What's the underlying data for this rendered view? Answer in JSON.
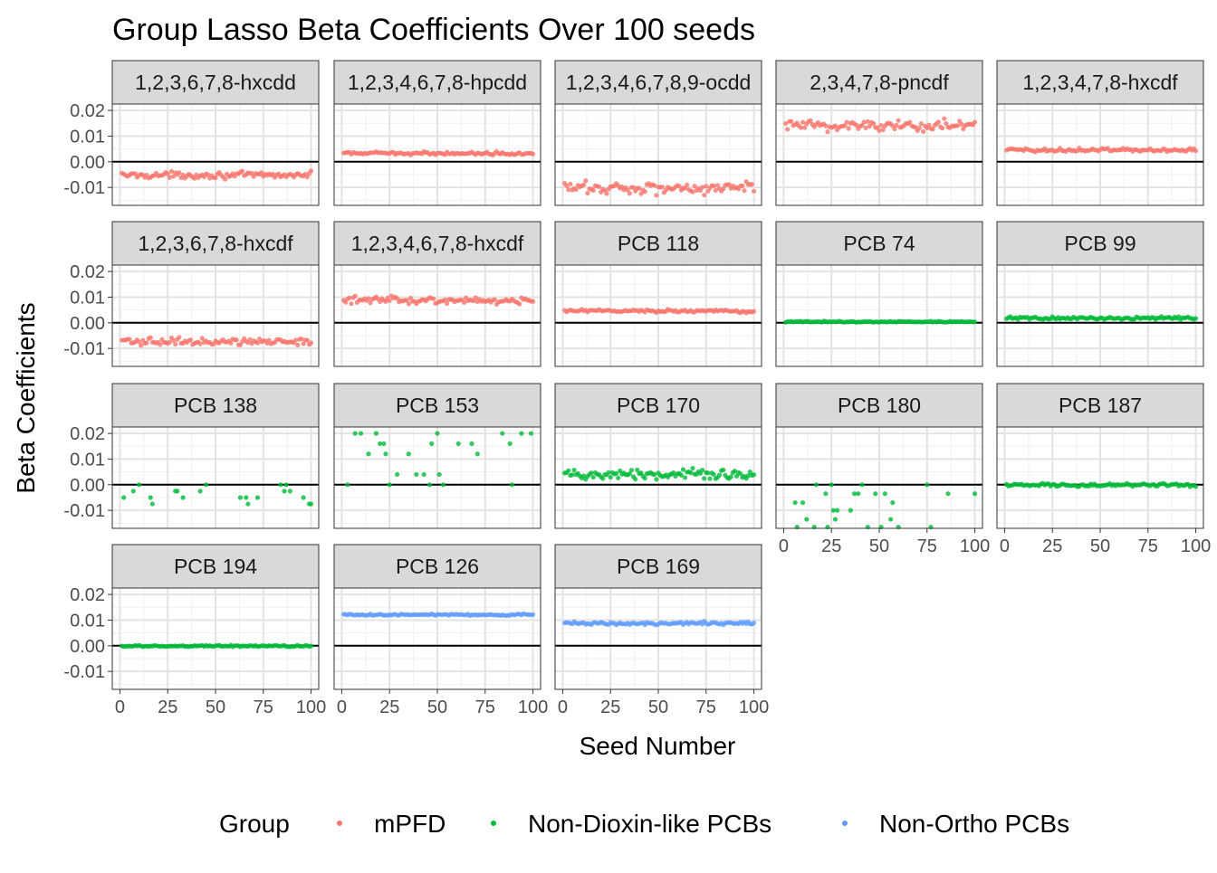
{
  "chart_data": {
    "type": "scatter",
    "title": "Group Lasso Beta Coefficients Over 100 seeds",
    "xlabel": "Seed Number",
    "ylabel": "Beta Coefficients",
    "xlim": [
      -4,
      104
    ],
    "ylim": [
      -0.017,
      0.0225
    ],
    "x_ticks": [
      0,
      25,
      50,
      75,
      100
    ],
    "y_ticks": [
      0.02,
      0.01,
      0.0,
      -0.01
    ],
    "y_tick_labels": [
      "0.02",
      "0.01",
      "0.00",
      "-0.01"
    ],
    "hline_y": 0,
    "grid": true,
    "legend": {
      "title": "Group",
      "position": "bottom",
      "entries": [
        {
          "name": "mPFD",
          "color": "#F8766D"
        },
        {
          "name": "Non-Dioxin-like PCBs",
          "color": "#00BA38"
        },
        {
          "name": "Non-Ortho PCBs",
          "color": "#619CFF"
        }
      ]
    },
    "panels": [
      {
        "label": "1,2,3,6,7,8-hxcdd",
        "group": "mPFD",
        "mean": -0.0052,
        "spread": 0.0011,
        "pattern": "noise"
      },
      {
        "label": "1,2,3,4,6,7,8-hpcdd",
        "group": "mPFD",
        "mean": 0.0033,
        "spread": 0.0005,
        "pattern": "noise"
      },
      {
        "label": "1,2,3,4,6,7,8,9-ocdd",
        "group": "mPFD",
        "mean": -0.0102,
        "spread": 0.0022,
        "pattern": "noise"
      },
      {
        "label": "2,3,4,7,8-pncdf",
        "group": "mPFD",
        "mean": 0.0142,
        "spread": 0.0022,
        "pattern": "noise"
      },
      {
        "label": "1,2,3,4,7,8-hxcdf",
        "group": "mPFD",
        "mean": 0.0046,
        "spread": 0.0007,
        "pattern": "noise"
      },
      {
        "label": "1,2,3,6,7,8-hxcdf",
        "group": "mPFD",
        "mean": -0.0073,
        "spread": 0.0012,
        "pattern": "noise"
      },
      {
        "label": "1,2,3,4,6,7,8-hxcdf",
        "group": "mPFD",
        "mean": 0.0088,
        "spread": 0.0012,
        "pattern": "noise"
      },
      {
        "label": "PCB 118",
        "group": "mPFD",
        "mean": 0.0046,
        "spread": 0.0005,
        "pattern": "noise"
      },
      {
        "label": "PCB 74",
        "group": "Non-Dioxin-like PCBs",
        "mean": 0.0004,
        "spread": 0.0002,
        "pattern": "noise"
      },
      {
        "label": "PCB 99",
        "group": "Non-Dioxin-like PCBs",
        "mean": 0.0018,
        "spread": 0.0005,
        "pattern": "noise"
      },
      {
        "label": "PCB 138",
        "group": "Non-Dioxin-like PCBs",
        "mean": 0,
        "spread": 0,
        "pattern": "levels",
        "levels": [
          0,
          -0.0025,
          -0.005,
          -0.0075
        ]
      },
      {
        "label": "PCB 153",
        "group": "Non-Dioxin-like PCBs",
        "mean": 0,
        "spread": 0,
        "pattern": "levels",
        "levels": [
          0,
          0.004,
          0.008,
          0.012,
          0.016,
          0.02
        ]
      },
      {
        "label": "PCB 170",
        "group": "Non-Dioxin-like PCBs",
        "mean": 0.004,
        "spread": 0.0016,
        "pattern": "noise"
      },
      {
        "label": "PCB 180",
        "group": "Non-Dioxin-like PCBs",
        "mean": 0,
        "spread": 0,
        "pattern": "levels",
        "levels": [
          0,
          -0.0035,
          -0.007,
          -0.01,
          -0.0135,
          -0.0165
        ]
      },
      {
        "label": "PCB 187",
        "group": "Non-Dioxin-like PCBs",
        "mean": -0.0001,
        "spread": 0.0006,
        "pattern": "noise"
      },
      {
        "label": "PCB 194",
        "group": "Non-Dioxin-like PCBs",
        "mean": -0.0001,
        "spread": 0.0003,
        "pattern": "noise"
      },
      {
        "label": "PCB 126",
        "group": "Non-Ortho PCBs",
        "mean": 0.0121,
        "spread": 0.0003,
        "pattern": "noise"
      },
      {
        "label": "PCB 169",
        "group": "Non-Ortho PCBs",
        "mean": 0.0088,
        "spread": 0.0006,
        "pattern": "noise"
      }
    ]
  }
}
